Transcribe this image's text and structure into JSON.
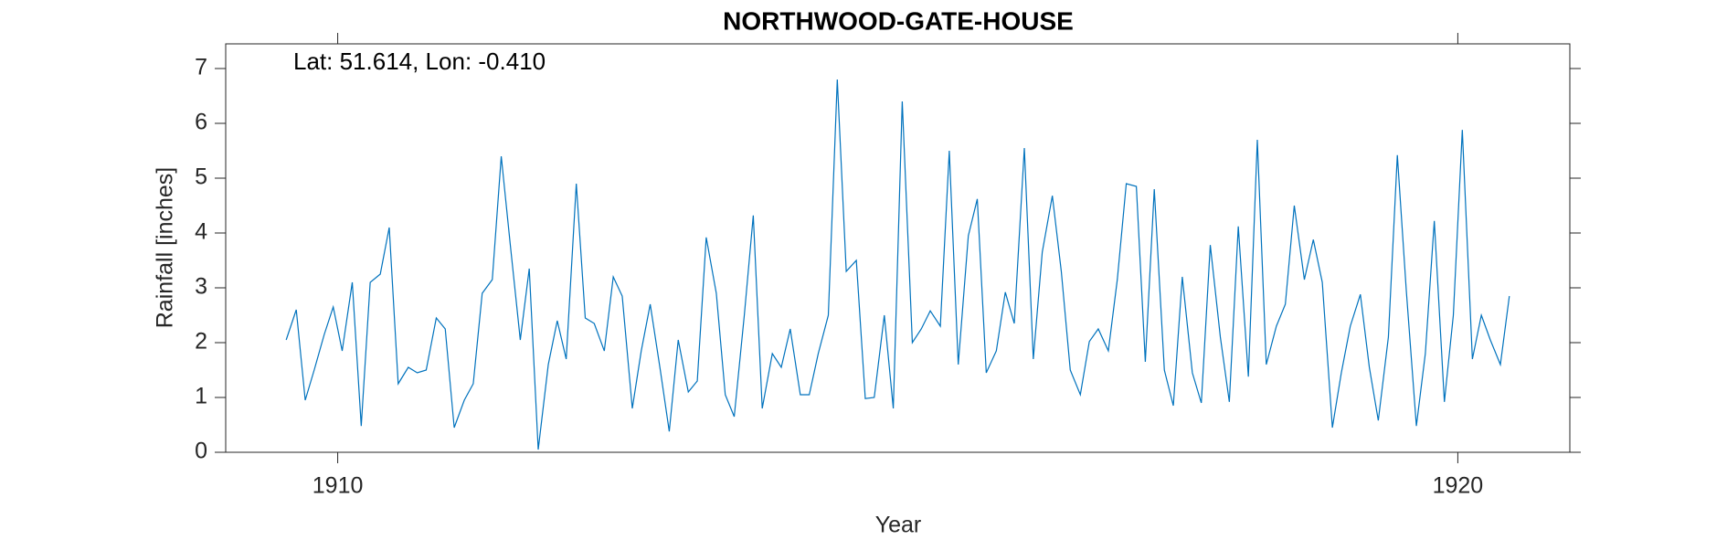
{
  "chart_data": {
    "type": "line",
    "title": "NORTHWOOD-GATE-HOUSE",
    "annotation": "Lat: 51.614, Lon: -0.410",
    "xlabel": "Year",
    "ylabel": "Rainfall [inches]",
    "x": [
      1909.54,
      1909.63,
      1909.71,
      1909.79,
      1909.88,
      1909.96,
      1910.04,
      1910.13,
      1910.21,
      1910.29,
      1910.38,
      1910.46,
      1910.54,
      1910.63,
      1910.71,
      1910.79,
      1910.88,
      1910.96,
      1911.04,
      1911.13,
      1911.21,
      1911.29,
      1911.38,
      1911.46,
      1911.54,
      1911.63,
      1911.71,
      1911.79,
      1911.88,
      1911.96,
      1912.04,
      1912.13,
      1912.21,
      1912.29,
      1912.38,
      1912.46,
      1912.54,
      1912.63,
      1912.71,
      1912.79,
      1912.88,
      1912.96,
      1913.04,
      1913.13,
      1913.21,
      1913.29,
      1913.38,
      1913.46,
      1913.54,
      1913.63,
      1913.71,
      1913.79,
      1913.88,
      1913.96,
      1914.04,
      1914.13,
      1914.21,
      1914.29,
      1914.38,
      1914.46,
      1914.54,
      1914.63,
      1914.71,
      1914.79,
      1914.88,
      1914.96,
      1915.04,
      1915.13,
      1915.21,
      1915.29,
      1915.38,
      1915.46,
      1915.54,
      1915.63,
      1915.71,
      1915.79,
      1915.88,
      1915.96,
      1916.04,
      1916.13,
      1916.21,
      1916.29,
      1916.38,
      1916.46,
      1916.54,
      1916.63,
      1916.71,
      1916.79,
      1916.88,
      1916.96,
      1917.04,
      1917.13,
      1917.21,
      1917.29,
      1917.38,
      1917.46,
      1917.54,
      1917.63,
      1917.71,
      1917.79,
      1917.88,
      1917.96,
      1918.04,
      1918.13,
      1918.21,
      1918.29,
      1918.38,
      1918.46,
      1918.54,
      1918.63,
      1918.71,
      1918.79,
      1918.88,
      1918.96,
      1919.04,
      1919.13,
      1919.21,
      1919.29,
      1919.38,
      1919.46,
      1919.54,
      1919.63,
      1919.71,
      1919.79,
      1919.88,
      1919.96,
      1920.04,
      1920.13,
      1920.21,
      1920.29,
      1920.38,
      1920.46
    ],
    "series": [
      {
        "name": "Rainfall",
        "color": "#0072bd",
        "values": [
          2.05,
          2.6,
          0.95,
          1.5,
          2.15,
          2.65,
          1.85,
          3.1,
          0.48,
          3.1,
          3.25,
          4.1,
          1.25,
          1.55,
          1.45,
          1.5,
          2.45,
          2.25,
          0.45,
          0.95,
          1.25,
          2.9,
          3.15,
          5.4,
          3.8,
          2.05,
          3.35,
          0.05,
          1.6,
          2.4,
          1.7,
          4.9,
          2.45,
          2.35,
          1.85,
          3.2,
          2.85,
          0.8,
          1.85,
          2.7,
          1.5,
          0.38,
          2.05,
          1.1,
          1.3,
          3.92,
          2.9,
          1.05,
          0.65,
          2.5,
          4.32,
          0.8,
          1.8,
          1.55,
          2.25,
          1.05,
          1.05,
          1.8,
          2.5,
          6.8,
          3.3,
          3.5,
          0.98,
          1.0,
          2.5,
          0.8,
          6.4,
          2.0,
          2.25,
          2.58,
          2.3,
          5.5,
          1.6,
          3.95,
          4.62,
          1.45,
          1.85,
          2.92,
          2.35,
          5.55,
          1.7,
          3.65,
          4.68,
          3.3,
          1.5,
          1.05,
          2.02,
          2.25,
          1.85,
          3.15,
          4.9,
          4.85,
          1.65,
          4.8,
          1.5,
          0.85,
          3.2,
          1.45,
          0.9,
          3.78,
          2.1,
          0.92,
          4.12,
          1.38,
          5.7,
          1.6,
          2.3,
          2.7,
          4.5,
          3.15,
          3.88,
          3.1,
          0.45,
          1.45,
          2.3,
          2.88,
          1.55,
          0.58,
          2.1,
          5.42,
          2.95,
          0.48,
          1.8,
          4.22,
          0.92,
          2.5,
          5.88,
          1.7,
          2.5,
          2.05,
          1.6,
          2.85
        ]
      }
    ],
    "xlim": [
      1909,
      1921
    ],
    "xticks": [
      1910,
      1920
    ],
    "ylim": [
      0,
      7.45
    ],
    "yticks": [
      0,
      1,
      2,
      3,
      4,
      5,
      6,
      7
    ],
    "grid": false
  }
}
